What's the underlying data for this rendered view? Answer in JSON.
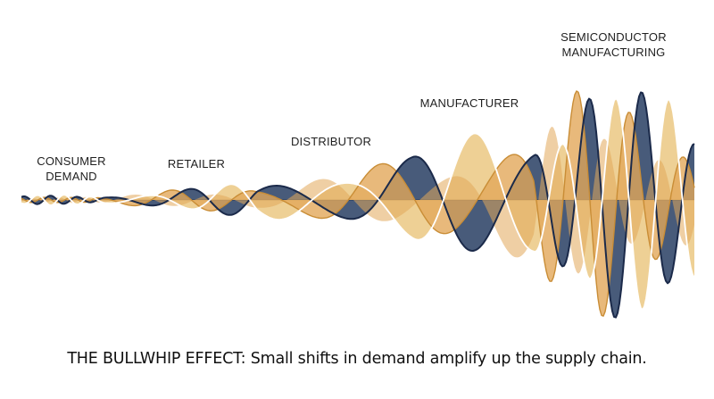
{
  "stages": {
    "consumer": [
      "CONSUMER",
      "DEMAND"
    ],
    "retailer": [
      "RETAILER"
    ],
    "distributor": [
      "DISTRIBUTOR"
    ],
    "manufacturer": [
      "MANUFACTURER"
    ],
    "semiconductor": [
      "SEMICONDUCTOR",
      "MANUFACTURING"
    ]
  },
  "caption": "THE BULLWHIP EFFECT: Small shifts in demand amplify up the supply chain.",
  "colors": {
    "navy": "#2f4468",
    "gold": "#e2a85a",
    "light_gold": "#ecc986",
    "white_line": "#ffffff",
    "dark_line": "#1b2a4a",
    "text": "#1f1f1f"
  }
}
